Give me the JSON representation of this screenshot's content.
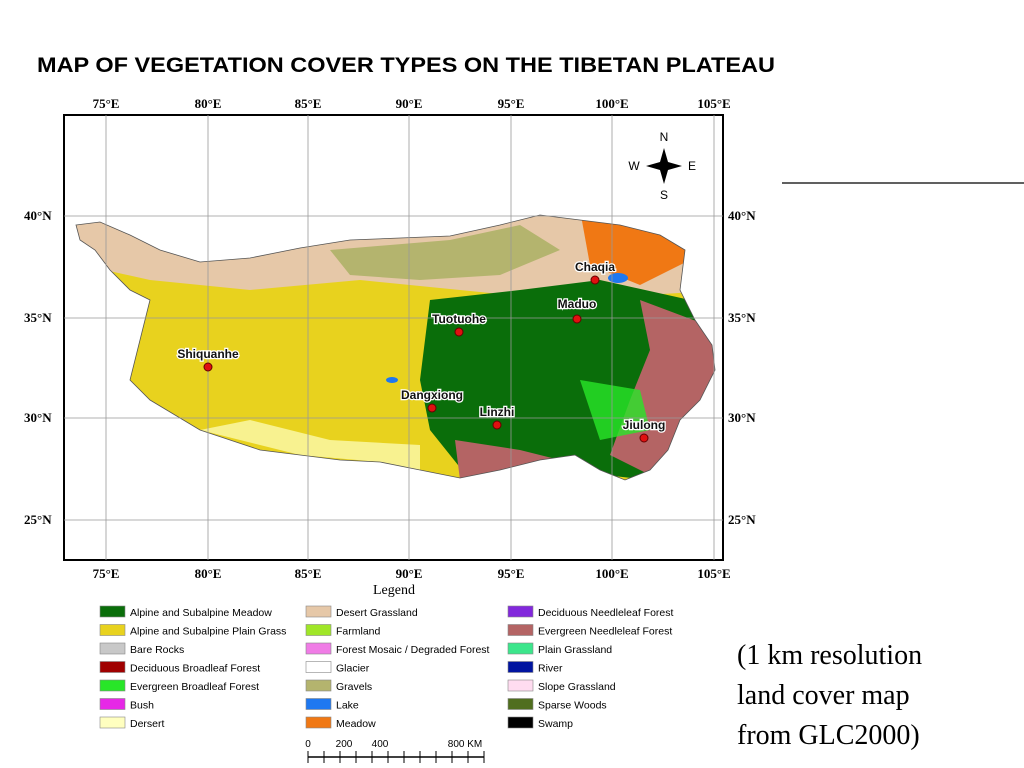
{
  "title": "MAP OF VEGETATION COVER TYPES ON THE TIBETAN PLATEAU",
  "map": {
    "lon_labels": [
      "75°E",
      "80°E",
      "85°E",
      "90°E",
      "95°E",
      "100°E",
      "105°E"
    ],
    "lat_labels": [
      "40°N",
      "35°N",
      "30°N",
      "25°N"
    ],
    "compass": {
      "n": "N",
      "s": "S",
      "e": "E",
      "w": "W"
    },
    "places": [
      "Chaqia",
      "Maduo",
      "Tuotuohe",
      "Shiquanhe",
      "Dangxiong",
      "Linzhi",
      "Jiulong"
    ]
  },
  "legend": {
    "title": "Legend",
    "items": [
      {
        "label": "Alpine and Subalpine Meadow",
        "color": "#0a6e0a"
      },
      {
        "label": "Alpine and Subalpine Plain Grass",
        "color": "#e8d21e"
      },
      {
        "label": "Bare Rocks",
        "color": "#c8c8c8"
      },
      {
        "label": "Deciduous Broadleaf Forest",
        "color": "#a00000"
      },
      {
        "label": "Evergreen Broadleaf Forest",
        "color": "#28e628"
      },
      {
        "label": "Bush",
        "color": "#e628e6"
      },
      {
        "label": "Dersert",
        "color": "#ffffc0"
      },
      {
        "label": "Desert Grassland",
        "color": "#e6c8a8"
      },
      {
        "label": "Farmland",
        "color": "#a0e628"
      },
      {
        "label": "Forest Mosaic / Degraded Forest",
        "color": "#f07ce6"
      },
      {
        "label": "Glacier",
        "color": "#ffffff"
      },
      {
        "label": "Gravels",
        "color": "#b4b46e"
      },
      {
        "label": "Lake",
        "color": "#1e78f0"
      },
      {
        "label": "Meadow",
        "color": "#f07814"
      },
      {
        "label": "Deciduous Needleleaf Forest",
        "color": "#8228dc"
      },
      {
        "label": "Evergreen Needleleaf Forest",
        "color": "#b46464"
      },
      {
        "label": "Plain Grassland",
        "color": "#3ce68c"
      },
      {
        "label": "River",
        "color": "#0014a0"
      },
      {
        "label": "Slope Grassland",
        "color": "#ffdcf0"
      },
      {
        "label": "Sparse Woods",
        "color": "#506e1e"
      },
      {
        "label": "Swamp",
        "color": "#000000"
      }
    ]
  },
  "scale_labels": [
    "0",
    "200",
    "400",
    "800 KM"
  ],
  "caption": [
    "(1 km resolution",
    "land cover map",
    "from GLC2000)"
  ]
}
